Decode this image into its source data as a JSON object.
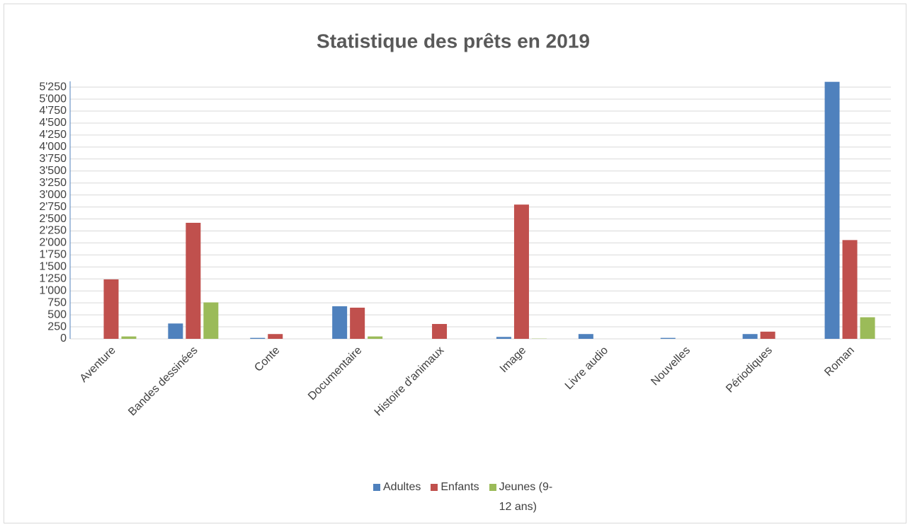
{
  "chart_data": {
    "type": "bar",
    "title": "Statistique des prêts en 2019",
    "categories": [
      "Aventure",
      "Bandes dessinées",
      "Conte",
      "Documentaire",
      "Histoire d'animaux",
      "Image",
      "Livre audio",
      "Nouvelles",
      "Périodiques",
      "Roman"
    ],
    "series": [
      {
        "name": "Adultes",
        "color": "#4f81bd",
        "values": [
          0,
          320,
          20,
          680,
          0,
          40,
          100,
          20,
          100,
          5360
        ]
      },
      {
        "name": "Enfants",
        "color": "#c0504d",
        "values": [
          1240,
          2420,
          100,
          650,
          310,
          2800,
          0,
          0,
          150,
          2060
        ]
      },
      {
        "name": "Jeunes (9-12 ans)",
        "color": "#9bbb59",
        "values": [
          50,
          760,
          0,
          50,
          0,
          5,
          0,
          0,
          0,
          450
        ]
      }
    ],
    "ylim": [
      0,
      5370
    ],
    "yticks": [
      0,
      250,
      500,
      750,
      {
        "value": 1000,
        "label": "1'000"
      },
      {
        "value": 1250,
        "label": "1'250"
      },
      {
        "value": 1500,
        "label": "1'500"
      },
      {
        "value": 1750,
        "label": "1'750"
      },
      {
        "value": 2000,
        "label": "2'000"
      },
      {
        "value": 2250,
        "label": "2'250"
      },
      {
        "value": 2500,
        "label": "2'500"
      },
      {
        "value": 2750,
        "label": "2'750"
      },
      {
        "value": 3000,
        "label": "3'000"
      },
      {
        "value": 3250,
        "label": "3'250"
      },
      {
        "value": 3500,
        "label": "3'500"
      },
      {
        "value": 3750,
        "label": "3'750"
      },
      {
        "value": 4000,
        "label": "4'000"
      },
      {
        "value": 4250,
        "label": "4'250"
      },
      {
        "value": 4500,
        "label": "4'500"
      },
      {
        "value": 4750,
        "label": "4'750"
      },
      {
        "value": 5000,
        "label": "5'000"
      },
      {
        "value": 5250,
        "label": "5'250"
      }
    ],
    "grid": true,
    "legend": "bottom"
  }
}
